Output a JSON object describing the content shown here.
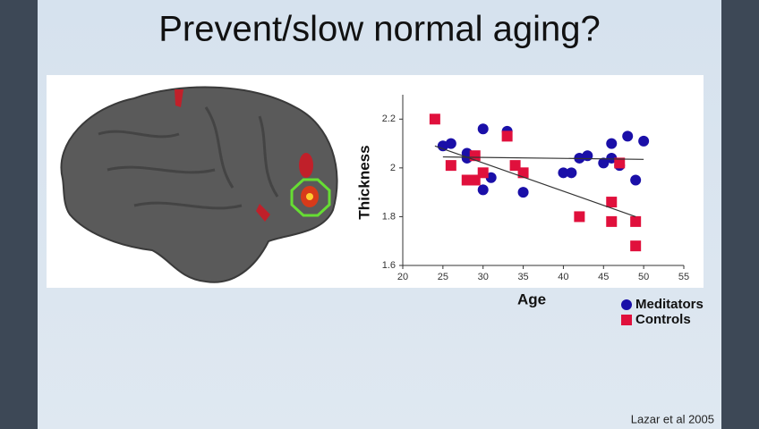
{
  "chart_data": {
    "type": "scatter",
    "title": "Prevent/slow normal aging?",
    "annotations": [
      "Lazar et al 2005"
    ],
    "x_label": "Age",
    "y_label": "Thickness",
    "xlim": [
      20,
      55
    ],
    "xticks": [
      20,
      25,
      30,
      35,
      40,
      45,
      50,
      55
    ],
    "ylim": [
      1.6,
      2.3
    ],
    "yticks": [
      1.6,
      1.8,
      2,
      2.2
    ],
    "series": [
      {
        "name": "Meditators",
        "color": "#1a0fa8",
        "marker": "circle",
        "x": [
          25,
          26,
          28,
          28,
          30,
          30,
          31,
          33,
          35,
          40,
          41,
          42,
          43,
          45,
          46,
          46,
          47,
          48,
          49,
          50
        ],
        "values": [
          2.09,
          2.1,
          2.06,
          2.04,
          2.16,
          1.91,
          1.96,
          2.15,
          1.9,
          1.98,
          1.98,
          2.04,
          2.05,
          2.02,
          2.04,
          2.1,
          2.01,
          2.13,
          1.95,
          2.11
        ]
      },
      {
        "name": "Controls",
        "color": "#e0103c",
        "marker": "square",
        "x": [
          24,
          26,
          28,
          29,
          29,
          30,
          33,
          34,
          35,
          42,
          46,
          46,
          47,
          49,
          49
        ],
        "values": [
          2.2,
          2.01,
          1.95,
          2.05,
          1.95,
          1.98,
          2.13,
          2.01,
          1.98,
          1.8,
          1.86,
          1.78,
          2.02,
          1.78,
          1.68
        ]
      }
    ],
    "trend_lines": [
      {
        "x": [
          25,
          50
        ],
        "values": [
          2.045,
          2.035
        ]
      },
      {
        "x": [
          24,
          49
        ],
        "values": [
          2.09,
          1.8
        ]
      }
    ]
  }
}
